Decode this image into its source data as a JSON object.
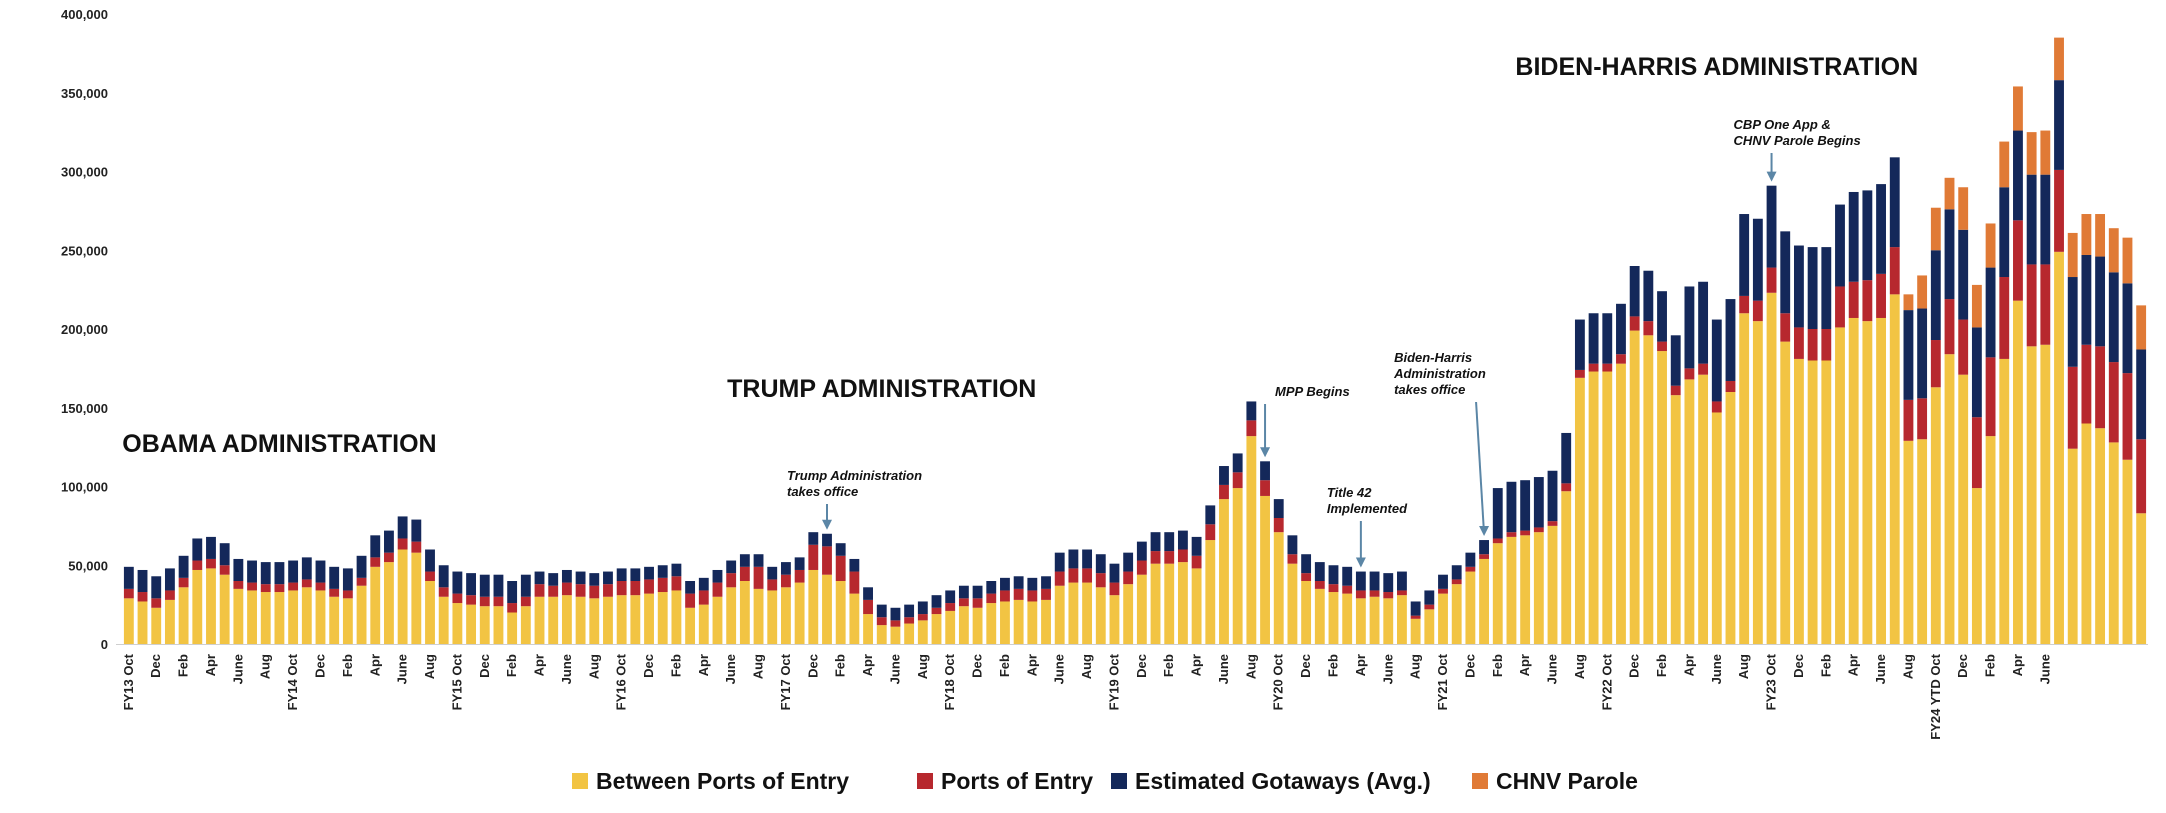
{
  "chart_data": {
    "type": "bar",
    "stacked": true,
    "ylim": [
      0,
      400000
    ],
    "yticks": [
      "0",
      "50,000",
      "100,000",
      "150,000",
      "200,000",
      "250,000",
      "300,000",
      "350,000",
      "400,000"
    ],
    "grid": false,
    "legend_position": "bottom",
    "colors": {
      "between": "#F2C443",
      "ports": "#B7282E",
      "gotaways": "#14285A",
      "chnv": "#E07A36",
      "arrow": "#5B86A6"
    },
    "legend": [
      {
        "key": "between",
        "label": "Between Ports of Entry"
      },
      {
        "key": "ports",
        "label": "Ports of Entry"
      },
      {
        "key": "gotaways",
        "label": "Estimated Gotaways (Avg.)"
      },
      {
        "key": "chnv",
        "label": "CHNV Parole"
      }
    ],
    "x_labels": [
      "FY13 Oct",
      "Dec",
      "Feb",
      "Apr",
      "June",
      "Aug",
      "FY14 Oct",
      "Dec",
      "Feb",
      "Apr",
      "June",
      "Aug",
      "FY15 Oct",
      "Dec",
      "Feb",
      "Apr",
      "June",
      "Aug",
      "FY16 Oct",
      "Dec",
      "Feb",
      "Apr",
      "June",
      "Aug",
      "FY17 Oct",
      "Dec",
      "Feb",
      "Apr",
      "June",
      "Aug",
      "FY18 Oct",
      "Dec",
      "Feb",
      "Apr",
      "June",
      "Aug",
      "FY19 Oct",
      "Dec",
      "Feb",
      "Apr",
      "June",
      "Aug",
      "FY20 Oct",
      "Dec",
      "Feb",
      "Apr",
      "June",
      "Aug",
      "FY21 Oct",
      "Dec",
      "Feb",
      "Apr",
      "June",
      "Aug",
      "FY22 Oct",
      "Dec",
      "Feb",
      "Apr",
      "June",
      "Aug",
      "FY23 Oct",
      "Dec",
      "Feb",
      "Apr",
      "June",
      "Aug",
      "FY24 YTD Oct",
      "Dec",
      "Feb",
      "Apr",
      "June"
    ],
    "series": [
      {
        "key": "between",
        "name": "Between Ports of Entry",
        "values": [
          29000,
          27000,
          23000,
          28000,
          36000,
          47000,
          48000,
          44000,
          35000,
          34000,
          33000,
          33000,
          34000,
          36000,
          34000,
          30000,
          29000,
          37000,
          49000,
          52000,
          60000,
          58000,
          40000,
          30000,
          26000,
          25000,
          24000,
          24000,
          20000,
          24000,
          30000,
          30000,
          31000,
          30000,
          29000,
          30000,
          31000,
          31000,
          32000,
          33000,
          34000,
          23000,
          25000,
          30000,
          36000,
          40000,
          35000,
          34000,
          36000,
          39000,
          47000,
          44000,
          40000,
          32000,
          19000,
          12000,
          11000,
          13000,
          15000,
          19000,
          21000,
          24000,
          23000,
          26000,
          27000,
          28000,
          27000,
          28000,
          37000,
          39000,
          39000,
          36000,
          31000,
          38000,
          44000,
          51000,
          51000,
          52000,
          48000,
          66000,
          92000,
          99000,
          132000,
          94000,
          71000,
          51000,
          40000,
          35000,
          33000,
          32000,
          29000,
          30000,
          29000,
          31000,
          16000,
          22000,
          32000,
          38000,
          46000,
          54000,
          64000,
          68000,
          69000,
          71000,
          75000,
          97000,
          169000,
          173000,
          173000,
          178000,
          199000,
          196000,
          186000,
          158000,
          168000,
          171000,
          147000,
          160000,
          210000,
          205000,
          223000,
          192000,
          181000,
          180000,
          180000,
          201000,
          207000,
          205000,
          207000,
          222000,
          129000,
          130000,
          163000,
          184000,
          171000,
          99000,
          132000,
          181000,
          218000,
          189000,
          190000,
          249000,
          124000,
          140000,
          137000,
          128000,
          117000,
          83000
        ]
      },
      {
        "key": "ports",
        "name": "Ports of Entry",
        "values": [
          6000,
          6000,
          6000,
          6000,
          6000,
          6000,
          6000,
          6000,
          5000,
          5000,
          5000,
          5000,
          5000,
          5000,
          5000,
          5000,
          5000,
          5000,
          6000,
          6000,
          7000,
          7000,
          6000,
          6000,
          6000,
          6000,
          6000,
          6000,
          6000,
          6000,
          8000,
          7000,
          8000,
          8000,
          8000,
          8000,
          9000,
          9000,
          9000,
          9000,
          9000,
          9000,
          9000,
          9000,
          9000,
          9000,
          14000,
          7000,
          8000,
          8000,
          16000,
          18000,
          16000,
          14000,
          9000,
          5000,
          4000,
          4000,
          4000,
          4000,
          5000,
          5000,
          6000,
          6000,
          7000,
          7000,
          7000,
          7000,
          9000,
          9000,
          9000,
          9000,
          8000,
          8000,
          9000,
          8000,
          8000,
          8000,
          8000,
          10000,
          9000,
          10000,
          10000,
          10000,
          9000,
          6000,
          5000,
          5000,
          5000,
          5000,
          5000,
          4000,
          4000,
          3000,
          2000,
          3000,
          3000,
          3000,
          3000,
          3000,
          3000,
          3000,
          3000,
          3000,
          3000,
          5000,
          5000,
          5000,
          5000,
          6000,
          9000,
          9000,
          6000,
          6000,
          7000,
          7000,
          7000,
          7000,
          11000,
          13000,
          16000,
          18000,
          20000,
          20000,
          20000,
          26000,
          23000,
          26000,
          28000,
          30000,
          26000,
          26000,
          30000,
          35000,
          35000,
          45000,
          50000,
          52000,
          51000,
          52000,
          51000,
          52000,
          52000,
          50000,
          52000,
          51000,
          55000,
          47000
        ]
      },
      {
        "key": "gotaways",
        "name": "Estimated Gotaways (Avg.)",
        "values": [
          14000,
          14000,
          14000,
          14000,
          14000,
          14000,
          14000,
          14000,
          14000,
          14000,
          14000,
          14000,
          14000,
          14000,
          14000,
          14000,
          14000,
          14000,
          14000,
          14000,
          14000,
          14000,
          14000,
          14000,
          14000,
          14000,
          14000,
          14000,
          14000,
          14000,
          8000,
          8000,
          8000,
          8000,
          8000,
          8000,
          8000,
          8000,
          8000,
          8000,
          8000,
          8000,
          8000,
          8000,
          8000,
          8000,
          8000,
          8000,
          8000,
          8000,
          8000,
          8000,
          8000,
          8000,
          8000,
          8000,
          8000,
          8000,
          8000,
          8000,
          8000,
          8000,
          8000,
          8000,
          8000,
          8000,
          8000,
          8000,
          12000,
          12000,
          12000,
          12000,
          12000,
          12000,
          12000,
          12000,
          12000,
          12000,
          12000,
          12000,
          12000,
          12000,
          12000,
          12000,
          12000,
          12000,
          12000,
          12000,
          12000,
          12000,
          12000,
          12000,
          12000,
          12000,
          9000,
          9000,
          9000,
          9000,
          9000,
          9000,
          32000,
          32000,
          32000,
          32000,
          32000,
          32000,
          32000,
          32000,
          32000,
          32000,
          32000,
          32000,
          32000,
          32000,
          52000,
          52000,
          52000,
          52000,
          52000,
          52000,
          52000,
          52000,
          52000,
          52000,
          52000,
          52000,
          57000,
          57000,
          57000,
          57000,
          57000,
          57000,
          57000,
          57000,
          57000,
          57000,
          57000,
          57000,
          57000,
          57000,
          57000,
          57000,
          57000,
          57000,
          57000,
          57000,
          57000,
          57000
        ]
      },
      {
        "key": "chnv",
        "name": "CHNV Parole",
        "values": [
          0,
          0,
          0,
          0,
          0,
          0,
          0,
          0,
          0,
          0,
          0,
          0,
          0,
          0,
          0,
          0,
          0,
          0,
          0,
          0,
          0,
          0,
          0,
          0,
          0,
          0,
          0,
          0,
          0,
          0,
          0,
          0,
          0,
          0,
          0,
          0,
          0,
          0,
          0,
          0,
          0,
          0,
          0,
          0,
          0,
          0,
          0,
          0,
          0,
          0,
          0,
          0,
          0,
          0,
          0,
          0,
          0,
          0,
          0,
          0,
          0,
          0,
          0,
          0,
          0,
          0,
          0,
          0,
          0,
          0,
          0,
          0,
          0,
          0,
          0,
          0,
          0,
          0,
          0,
          0,
          0,
          0,
          0,
          0,
          0,
          0,
          0,
          0,
          0,
          0,
          0,
          0,
          0,
          0,
          0,
          0,
          0,
          0,
          0,
          0,
          0,
          0,
          0,
          0,
          0,
          0,
          0,
          0,
          0,
          0,
          0,
          0,
          0,
          0,
          0,
          0,
          0,
          0,
          0,
          0,
          0,
          0,
          0,
          0,
          0,
          0,
          0,
          0,
          0,
          0,
          10000,
          21000,
          27000,
          20000,
          27000,
          27000,
          28000,
          29000,
          28000,
          27000,
          28000,
          27000,
          28000,
          26000,
          27000,
          28000,
          29000,
          28000
        ]
      }
    ],
    "admin_labels": [
      {
        "text": "OBAMA ADMINISTRATION",
        "at": 11
      },
      {
        "text": "TRUMP ADMINISTRATION",
        "at": 55
      },
      {
        "text": "BIDEN-HARRIS ADMINISTRATION",
        "at": 116
      }
    ],
    "annotations": [
      {
        "lines": [
          "Trump Administration",
          "takes office"
        ],
        "bar": 51
      },
      {
        "lines": [
          "MPP Begins"
        ],
        "bar": 83
      },
      {
        "lines": [
          "Title 42",
          "Implemented"
        ],
        "bar": 90
      },
      {
        "lines": [
          "Biden-Harris",
          "Administration",
          "takes office"
        ],
        "bar": 99
      },
      {
        "lines": [
          "CBP One App &",
          "CHNV Parole Begins"
        ],
        "bar": 120
      }
    ]
  }
}
